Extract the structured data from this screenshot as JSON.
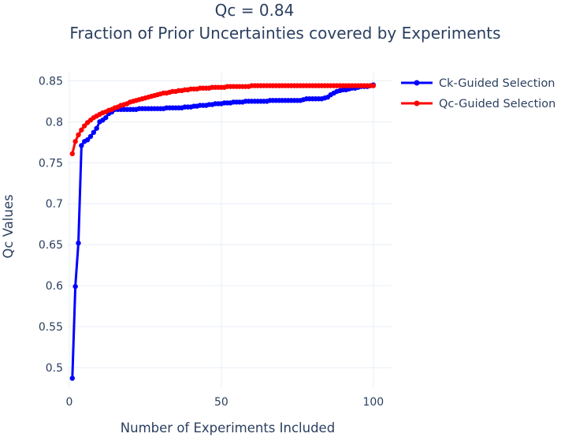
{
  "chart_data": {
    "type": "line",
    "title": "Qc = 0.84",
    "subtitle": "Fraction of Prior Uncertainties covered by Experiments",
    "xlabel": "Number of Experiments Included",
    "ylabel": "Qc Values",
    "xlim": [
      -0.5,
      106
    ],
    "ylim": [
      0.475,
      0.86
    ],
    "x_ticks": [
      0,
      50,
      100
    ],
    "y_ticks": [
      0.5,
      0.55,
      0.6,
      0.65,
      0.7,
      0.75,
      0.8,
      0.85
    ],
    "grid": true,
    "legend_position": "top-right",
    "series": [
      {
        "name": "Ck-Guided Selection",
        "color": "#0000ff",
        "x": [
          1,
          2,
          3,
          4,
          5,
          6,
          7,
          8,
          9,
          10,
          11,
          12,
          13,
          14,
          15,
          16,
          17,
          18,
          19,
          20,
          21,
          22,
          23,
          24,
          25,
          26,
          27,
          28,
          29,
          30,
          31,
          32,
          33,
          34,
          35,
          36,
          37,
          38,
          39,
          40,
          41,
          42,
          43,
          44,
          45,
          46,
          47,
          48,
          49,
          50,
          51,
          52,
          53,
          54,
          55,
          56,
          57,
          58,
          59,
          60,
          61,
          62,
          63,
          64,
          65,
          66,
          67,
          68,
          69,
          70,
          71,
          72,
          73,
          74,
          75,
          76,
          77,
          78,
          79,
          80,
          81,
          82,
          83,
          84,
          85,
          86,
          87,
          88,
          89,
          90,
          91,
          92,
          93,
          94,
          95,
          96,
          97,
          98,
          99,
          100
        ],
        "y": [
          0.487,
          0.599,
          0.652,
          0.771,
          0.776,
          0.778,
          0.782,
          0.787,
          0.792,
          0.8,
          0.802,
          0.805,
          0.81,
          0.812,
          0.815,
          0.815,
          0.815,
          0.815,
          0.815,
          0.815,
          0.815,
          0.815,
          0.816,
          0.816,
          0.816,
          0.816,
          0.816,
          0.816,
          0.816,
          0.816,
          0.816,
          0.817,
          0.817,
          0.817,
          0.817,
          0.817,
          0.817,
          0.818,
          0.818,
          0.818,
          0.819,
          0.819,
          0.82,
          0.82,
          0.82,
          0.821,
          0.821,
          0.822,
          0.822,
          0.822,
          0.823,
          0.823,
          0.823,
          0.824,
          0.824,
          0.824,
          0.824,
          0.825,
          0.825,
          0.825,
          0.825,
          0.825,
          0.825,
          0.825,
          0.825,
          0.826,
          0.826,
          0.826,
          0.826,
          0.826,
          0.826,
          0.826,
          0.826,
          0.826,
          0.826,
          0.826,
          0.827,
          0.828,
          0.828,
          0.828,
          0.828,
          0.828,
          0.828,
          0.829,
          0.83,
          0.833,
          0.835,
          0.837,
          0.838,
          0.839,
          0.839,
          0.84,
          0.841,
          0.841,
          0.842,
          0.843,
          0.843,
          0.843,
          0.844,
          0.845
        ]
      },
      {
        "name": "Qc-Guided Selection",
        "color": "#ff0000",
        "x": [
          1,
          2,
          3,
          4,
          5,
          6,
          7,
          8,
          9,
          10,
          11,
          12,
          13,
          14,
          15,
          16,
          17,
          18,
          19,
          20,
          21,
          22,
          23,
          24,
          25,
          26,
          27,
          28,
          29,
          30,
          31,
          32,
          33,
          34,
          35,
          36,
          37,
          38,
          39,
          40,
          41,
          42,
          43,
          44,
          45,
          46,
          47,
          48,
          49,
          50,
          51,
          52,
          53,
          54,
          55,
          56,
          57,
          58,
          59,
          60,
          61,
          62,
          63,
          64,
          65,
          66,
          67,
          68,
          69,
          70,
          71,
          72,
          73,
          74,
          75,
          76,
          77,
          78,
          79,
          80,
          81,
          82,
          83,
          84,
          85,
          86,
          87,
          88,
          89,
          90,
          91,
          92,
          93,
          94,
          95,
          96,
          97,
          98,
          99,
          100
        ],
        "y": [
          0.761,
          0.776,
          0.784,
          0.79,
          0.795,
          0.799,
          0.802,
          0.805,
          0.807,
          0.809,
          0.811,
          0.812,
          0.814,
          0.815,
          0.817,
          0.818,
          0.82,
          0.821,
          0.822,
          0.824,
          0.825,
          0.826,
          0.827,
          0.828,
          0.829,
          0.83,
          0.831,
          0.832,
          0.833,
          0.834,
          0.835,
          0.835,
          0.836,
          0.837,
          0.837,
          0.838,
          0.838,
          0.839,
          0.839,
          0.84,
          0.84,
          0.84,
          0.841,
          0.841,
          0.841,
          0.841,
          0.842,
          0.842,
          0.842,
          0.842,
          0.842,
          0.843,
          0.843,
          0.843,
          0.843,
          0.843,
          0.843,
          0.843,
          0.843,
          0.844,
          0.844,
          0.844,
          0.844,
          0.844,
          0.844,
          0.844,
          0.844,
          0.844,
          0.844,
          0.844,
          0.844,
          0.844,
          0.844,
          0.844,
          0.844,
          0.844,
          0.844,
          0.844,
          0.844,
          0.844,
          0.844,
          0.844,
          0.844,
          0.844,
          0.844,
          0.844,
          0.844,
          0.844,
          0.844,
          0.844,
          0.844,
          0.844,
          0.844,
          0.844,
          0.844,
          0.844,
          0.844,
          0.844,
          0.844,
          0.844
        ]
      }
    ]
  }
}
